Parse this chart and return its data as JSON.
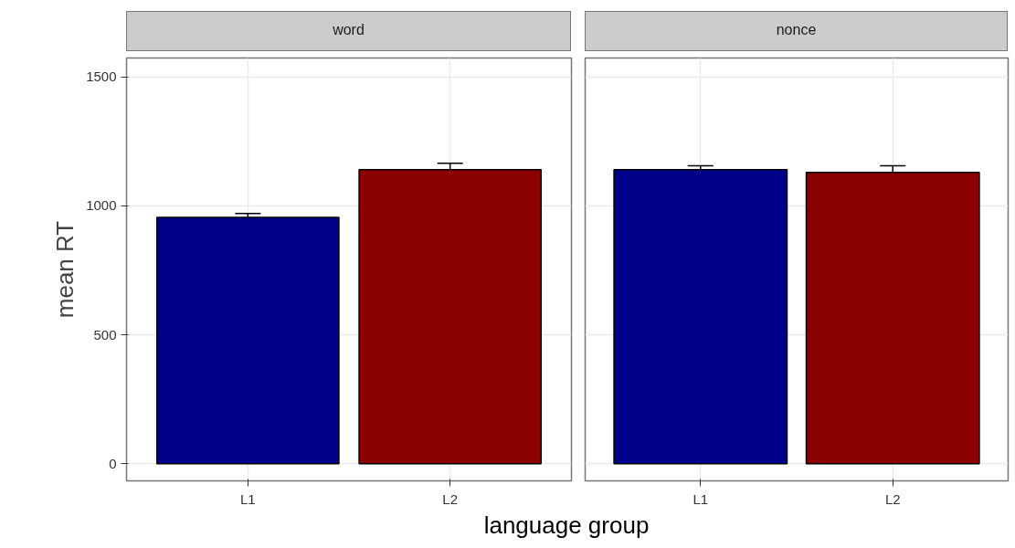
{
  "chart_data": [
    {
      "type": "bar",
      "title": "word",
      "ylabel": "mean RT",
      "xlabel": "language group",
      "categories": [
        "L1",
        "L2"
      ],
      "values": [
        955,
        1140
      ],
      "errors": [
        15,
        25
      ],
      "colors": [
        "#00008b",
        "#8b0000"
      ],
      "ylim": [
        -66,
        1573
      ],
      "yticks": [
        0,
        500,
        1000,
        1500
      ],
      "grid": true
    },
    {
      "type": "bar",
      "title": "nonce",
      "categories": [
        "L1",
        "L2"
      ],
      "values": [
        1140,
        1130
      ],
      "errors": [
        15,
        25
      ],
      "colors": [
        "#00008b",
        "#8b0000"
      ],
      "ylim": [
        -66,
        1573
      ],
      "yticks": [
        0,
        500,
        1000,
        1500
      ],
      "grid": true,
      "tick_labels": "x"
    }
  ]
}
